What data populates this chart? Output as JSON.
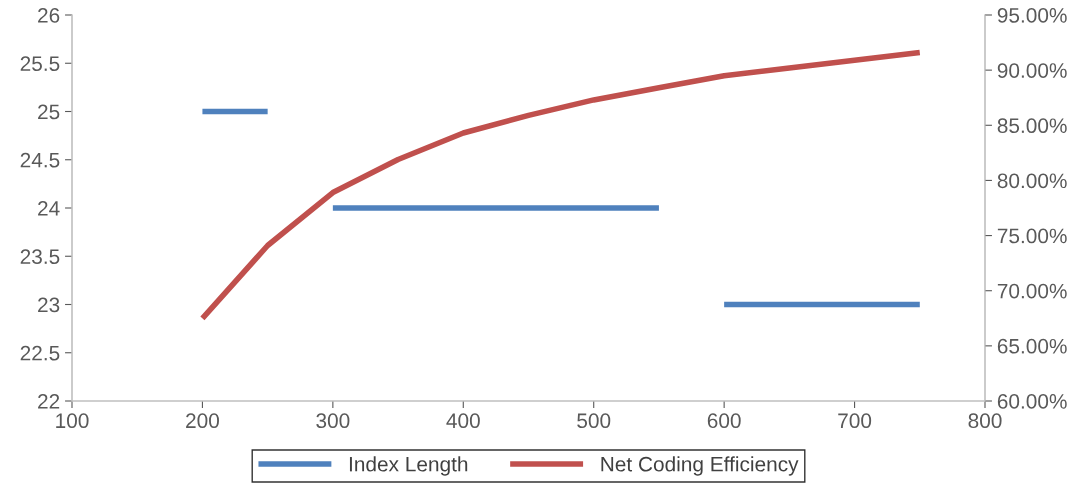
{
  "chart_data": {
    "type": "line",
    "xlim": [
      100,
      800
    ],
    "xticks": [
      100,
      200,
      300,
      400,
      500,
      600,
      700,
      800
    ],
    "ylim": [
      22,
      26
    ],
    "yticks": [
      22,
      22.5,
      23,
      23.5,
      24,
      24.5,
      25,
      25.5,
      26
    ],
    "y2lim": [
      60,
      95
    ],
    "y2ticks": [
      {
        "value": 60,
        "label": "60.00%"
      },
      {
        "value": 65,
        "label": "65.00%"
      },
      {
        "value": 70,
        "label": "70.00%"
      },
      {
        "value": 75,
        "label": "75.00%"
      },
      {
        "value": 80,
        "label": "80.00%"
      },
      {
        "value": 85,
        "label": "85.00%"
      },
      {
        "value": 90,
        "label": "90.00%"
      },
      {
        "value": 95,
        "label": "95.00%"
      }
    ],
    "grid": false,
    "legend": "bottom",
    "marker": "none",
    "line_style": "solid",
    "series": [
      {
        "name": "Index Length",
        "color": "#4f81bd",
        "x": [
          200,
          250,
          275,
          300,
          550,
          575,
          600,
          750
        ],
        "values": [
          25,
          25,
          null,
          24,
          24,
          null,
          23,
          23
        ]
      },
      {
        "name": "Net Coding Efficiency",
        "color": "#c0504d",
        "axis": "y2",
        "x": [
          200,
          250,
          300,
          350,
          400,
          450,
          500,
          550,
          600,
          650,
          700,
          750
        ],
        "values": [
          67.5,
          74.1,
          78.9,
          81.9,
          84.3,
          85.9,
          87.3,
          88.4,
          89.5,
          90.2,
          90.9,
          91.6
        ]
      }
    ]
  }
}
